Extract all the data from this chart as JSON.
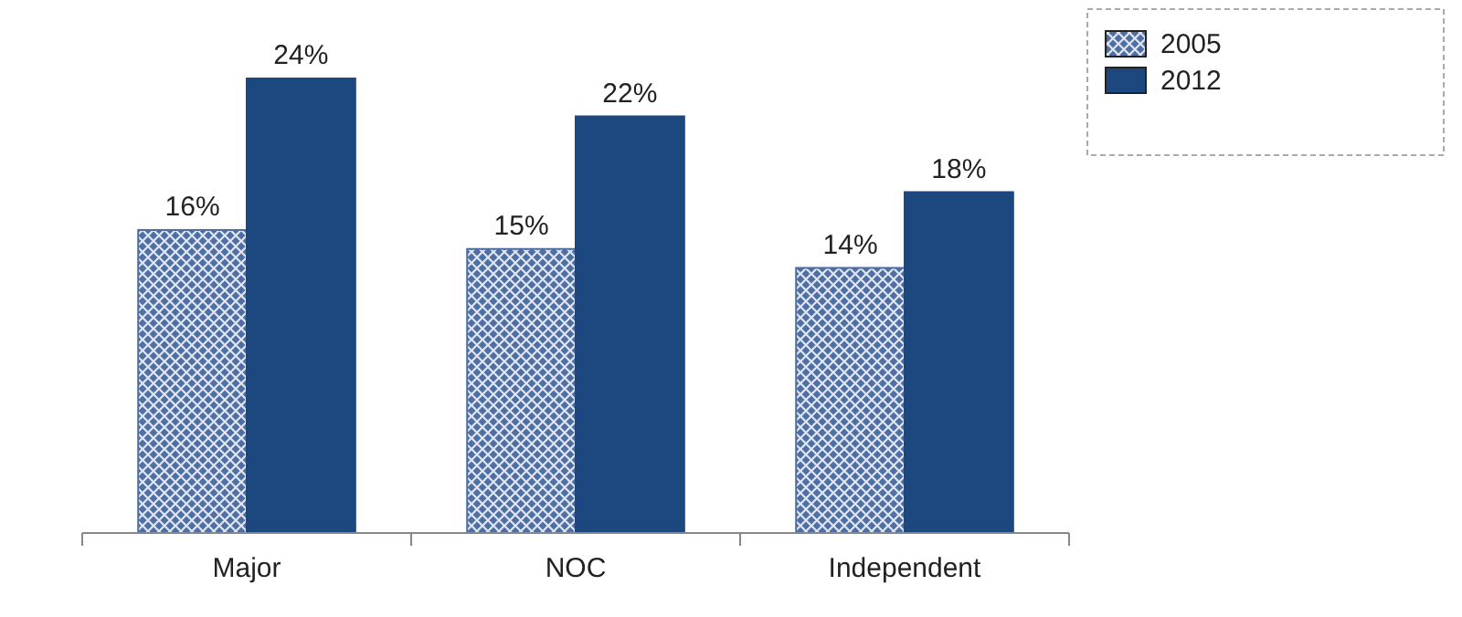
{
  "chart_data": {
    "type": "bar",
    "categories": [
      "Major",
      "NOC",
      "Independent"
    ],
    "series": [
      {
        "name": "2005",
        "color": "#4f6fa3",
        "values": [
          16,
          15,
          14
        ],
        "value_labels": [
          "16%",
          "15%",
          "14%"
        ]
      },
      {
        "name": "2012",
        "color": "#1d477f",
        "values": [
          24,
          22,
          18
        ],
        "value_labels": [
          "24%",
          "22%",
          "18%"
        ]
      }
    ],
    "legend": "top right"
  }
}
